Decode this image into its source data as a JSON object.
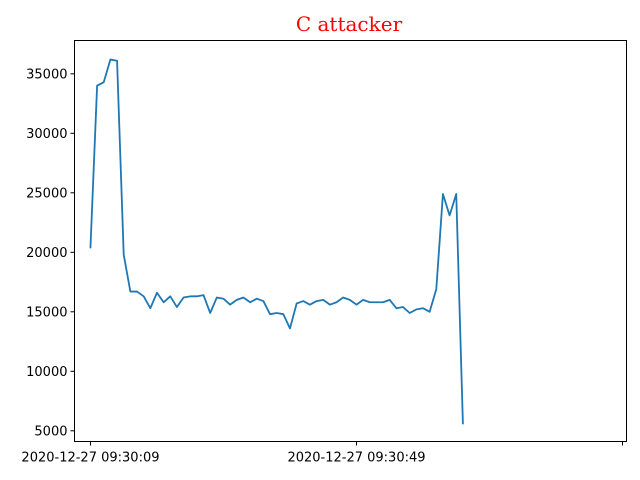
{
  "chart_data": {
    "type": "line",
    "title": "C attacker",
    "xlabel": "",
    "ylabel": "",
    "grid": false,
    "legend": "none",
    "colors": {
      "title": "#ff0000",
      "line": "#1f77b4"
    },
    "xlim": [
      -2.4,
      80.6
    ],
    "ylim": [
      4100,
      37800
    ],
    "x_ticks": [
      {
        "value": 0,
        "label": "2020-12-27 09:30:09"
      },
      {
        "value": 40,
        "label": "2020-12-27 09:30:49"
      },
      {
        "value": 80,
        "label": ""
      }
    ],
    "y_ticks": [
      5000,
      10000,
      15000,
      20000,
      25000,
      30000,
      35000
    ],
    "series": [
      {
        "values": [
          20400,
          34000,
          34300,
          36200,
          36100,
          19800,
          16700,
          16700,
          16300,
          15300,
          16600,
          15800,
          16300,
          15400,
          16200,
          16300,
          16300,
          16400,
          14900,
          16200,
          16100,
          15600,
          16000,
          16200,
          15800,
          16100,
          15900,
          14800,
          14900,
          14800,
          13600,
          15700,
          15900,
          15600,
          15900,
          16000,
          15600,
          15800,
          16200,
          16000,
          15600,
          16000,
          15800,
          15800,
          15800,
          16000,
          15300,
          15400,
          14900,
          15200,
          15300,
          15000,
          16900,
          24900,
          23100,
          24900,
          5600
        ]
      }
    ]
  }
}
